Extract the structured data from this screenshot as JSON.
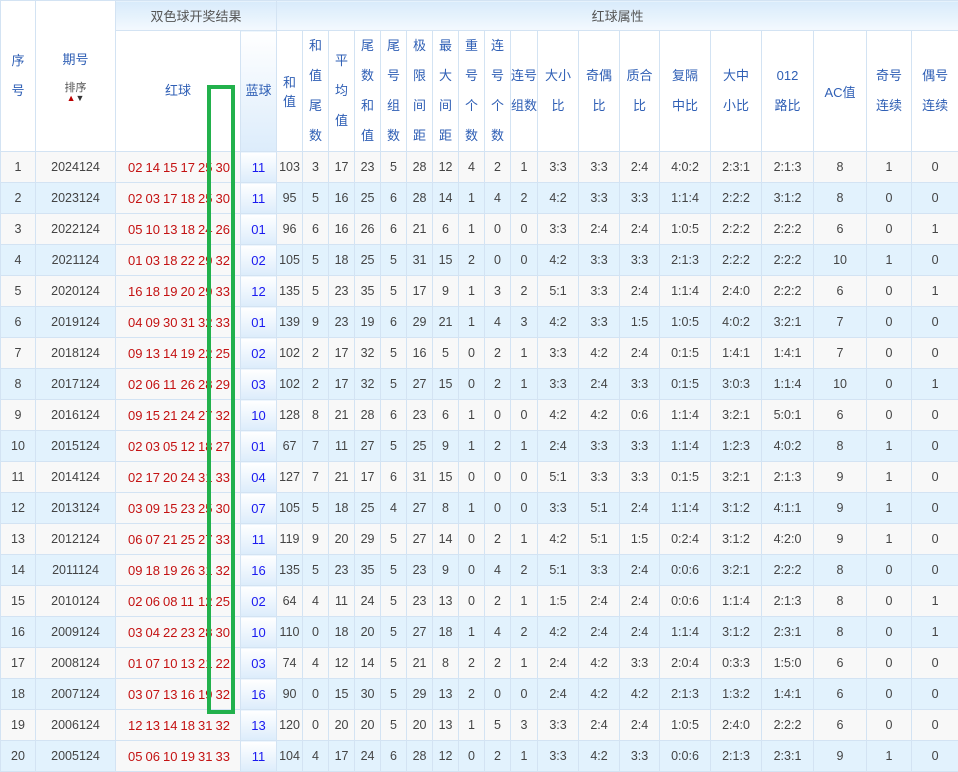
{
  "header": {
    "seq": "序\n号",
    "issue": "期号",
    "sort_label": "排序",
    "sort_up_icon": "arrow-up",
    "sort_down_icon": "arrow-down",
    "draw_group": "双色球开奖结果",
    "attr_group": "红球属性",
    "red": "红球",
    "blue": "蓝球",
    "attrs": [
      "和值",
      "和值\n尾数",
      "平均\n值",
      "尾数\n和值",
      "尾号\n组数",
      "极限\n间距",
      "最大\n间距",
      "重号\n个数",
      "连号\n个数",
      "连号\n组数",
      "大小\n比",
      "奇偶\n比",
      "质合\n比",
      "复隔\n中比",
      "大中\n小比",
      "012\n路比",
      "AC值",
      "奇号\n连续",
      "偶号\n连续"
    ]
  },
  "colors": {
    "red_ball": "#c41212",
    "blue_ball": "#1a1af0",
    "header_text": "#2f5fb5",
    "highlight_box": "#22b14c",
    "row_alt": "#e2f2fd"
  },
  "rows": [
    {
      "seq": "1",
      "issue": "2024124",
      "red": [
        "02",
        "14",
        "15",
        "17",
        "25",
        "30"
      ],
      "blue": "11",
      "attrs": [
        "103",
        "3",
        "17",
        "23",
        "5",
        "28",
        "12",
        "4",
        "2",
        "1",
        "3:3",
        "3:3",
        "2:4",
        "4:0:2",
        "2:3:1",
        "2:1:3",
        "8",
        "1",
        "0"
      ]
    },
    {
      "seq": "2",
      "issue": "2023124",
      "red": [
        "02",
        "03",
        "17",
        "18",
        "25",
        "30"
      ],
      "blue": "11",
      "attrs": [
        "95",
        "5",
        "16",
        "25",
        "6",
        "28",
        "14",
        "1",
        "4",
        "2",
        "4:2",
        "3:3",
        "3:3",
        "1:1:4",
        "2:2:2",
        "3:1:2",
        "8",
        "0",
        "0"
      ]
    },
    {
      "seq": "3",
      "issue": "2022124",
      "red": [
        "05",
        "10",
        "13",
        "18",
        "24",
        "26"
      ],
      "blue": "01",
      "attrs": [
        "96",
        "6",
        "16",
        "26",
        "6",
        "21",
        "6",
        "1",
        "0",
        "0",
        "3:3",
        "2:4",
        "2:4",
        "1:0:5",
        "2:2:2",
        "2:2:2",
        "6",
        "0",
        "1"
      ]
    },
    {
      "seq": "4",
      "issue": "2021124",
      "red": [
        "01",
        "03",
        "18",
        "22",
        "29",
        "32"
      ],
      "blue": "02",
      "attrs": [
        "105",
        "5",
        "18",
        "25",
        "5",
        "31",
        "15",
        "2",
        "0",
        "0",
        "4:2",
        "3:3",
        "3:3",
        "2:1:3",
        "2:2:2",
        "2:2:2",
        "10",
        "1",
        "0"
      ]
    },
    {
      "seq": "5",
      "issue": "2020124",
      "red": [
        "16",
        "18",
        "19",
        "20",
        "29",
        "33"
      ],
      "blue": "12",
      "attrs": [
        "135",
        "5",
        "23",
        "35",
        "5",
        "17",
        "9",
        "1",
        "3",
        "2",
        "5:1",
        "3:3",
        "2:4",
        "1:1:4",
        "2:4:0",
        "2:2:2",
        "6",
        "0",
        "1"
      ]
    },
    {
      "seq": "6",
      "issue": "2019124",
      "red": [
        "04",
        "09",
        "30",
        "31",
        "32",
        "33"
      ],
      "blue": "01",
      "attrs": [
        "139",
        "9",
        "23",
        "19",
        "6",
        "29",
        "21",
        "1",
        "4",
        "3",
        "4:2",
        "3:3",
        "1:5",
        "1:0:5",
        "4:0:2",
        "3:2:1",
        "7",
        "0",
        "0"
      ]
    },
    {
      "seq": "7",
      "issue": "2018124",
      "red": [
        "09",
        "13",
        "14",
        "19",
        "22",
        "25"
      ],
      "blue": "02",
      "attrs": [
        "102",
        "2",
        "17",
        "32",
        "5",
        "16",
        "5",
        "0",
        "2",
        "1",
        "3:3",
        "4:2",
        "2:4",
        "0:1:5",
        "1:4:1",
        "1:4:1",
        "7",
        "0",
        "0"
      ]
    },
    {
      "seq": "8",
      "issue": "2017124",
      "red": [
        "02",
        "06",
        "11",
        "26",
        "28",
        "29"
      ],
      "blue": "03",
      "attrs": [
        "102",
        "2",
        "17",
        "32",
        "5",
        "27",
        "15",
        "0",
        "2",
        "1",
        "3:3",
        "2:4",
        "3:3",
        "0:1:5",
        "3:0:3",
        "1:1:4",
        "10",
        "0",
        "1"
      ]
    },
    {
      "seq": "9",
      "issue": "2016124",
      "red": [
        "09",
        "15",
        "21",
        "24",
        "27",
        "32"
      ],
      "blue": "10",
      "attrs": [
        "128",
        "8",
        "21",
        "28",
        "6",
        "23",
        "6",
        "1",
        "0",
        "0",
        "4:2",
        "4:2",
        "0:6",
        "1:1:4",
        "3:2:1",
        "5:0:1",
        "6",
        "0",
        "0"
      ]
    },
    {
      "seq": "10",
      "issue": "2015124",
      "red": [
        "02",
        "03",
        "05",
        "12",
        "18",
        "27"
      ],
      "blue": "01",
      "attrs": [
        "67",
        "7",
        "11",
        "27",
        "5",
        "25",
        "9",
        "1",
        "2",
        "1",
        "2:4",
        "3:3",
        "3:3",
        "1:1:4",
        "1:2:3",
        "4:0:2",
        "8",
        "1",
        "0"
      ]
    },
    {
      "seq": "11",
      "issue": "2014124",
      "red": [
        "02",
        "17",
        "20",
        "24",
        "31",
        "33"
      ],
      "blue": "04",
      "attrs": [
        "127",
        "7",
        "21",
        "17",
        "6",
        "31",
        "15",
        "0",
        "0",
        "0",
        "5:1",
        "3:3",
        "3:3",
        "0:1:5",
        "3:2:1",
        "2:1:3",
        "9",
        "1",
        "0"
      ]
    },
    {
      "seq": "12",
      "issue": "2013124",
      "red": [
        "03",
        "09",
        "15",
        "23",
        "25",
        "30"
      ],
      "blue": "07",
      "attrs": [
        "105",
        "5",
        "18",
        "25",
        "4",
        "27",
        "8",
        "1",
        "0",
        "0",
        "3:3",
        "5:1",
        "2:4",
        "1:1:4",
        "3:1:2",
        "4:1:1",
        "9",
        "1",
        "0"
      ]
    },
    {
      "seq": "13",
      "issue": "2012124",
      "red": [
        "06",
        "07",
        "21",
        "25",
        "27",
        "33"
      ],
      "blue": "11",
      "attrs": [
        "119",
        "9",
        "20",
        "29",
        "5",
        "27",
        "14",
        "0",
        "2",
        "1",
        "4:2",
        "5:1",
        "1:5",
        "0:2:4",
        "3:1:2",
        "4:2:0",
        "9",
        "1",
        "0"
      ]
    },
    {
      "seq": "14",
      "issue": "2011124",
      "red": [
        "09",
        "18",
        "19",
        "26",
        "31",
        "32"
      ],
      "blue": "16",
      "attrs": [
        "135",
        "5",
        "23",
        "35",
        "5",
        "23",
        "9",
        "0",
        "4",
        "2",
        "5:1",
        "3:3",
        "2:4",
        "0:0:6",
        "3:2:1",
        "2:2:2",
        "8",
        "0",
        "0"
      ]
    },
    {
      "seq": "15",
      "issue": "2010124",
      "red": [
        "02",
        "06",
        "08",
        "11",
        "12",
        "25"
      ],
      "blue": "02",
      "attrs": [
        "64",
        "4",
        "11",
        "24",
        "5",
        "23",
        "13",
        "0",
        "2",
        "1",
        "1:5",
        "2:4",
        "2:4",
        "0:0:6",
        "1:1:4",
        "2:1:3",
        "8",
        "0",
        "1"
      ]
    },
    {
      "seq": "16",
      "issue": "2009124",
      "red": [
        "03",
        "04",
        "22",
        "23",
        "28",
        "30"
      ],
      "blue": "10",
      "attrs": [
        "110",
        "0",
        "18",
        "20",
        "5",
        "27",
        "18",
        "1",
        "4",
        "2",
        "4:2",
        "2:4",
        "2:4",
        "1:1:4",
        "3:1:2",
        "2:3:1",
        "8",
        "0",
        "1"
      ]
    },
    {
      "seq": "17",
      "issue": "2008124",
      "red": [
        "01",
        "07",
        "10",
        "13",
        "21",
        "22"
      ],
      "blue": "03",
      "attrs": [
        "74",
        "4",
        "12",
        "14",
        "5",
        "21",
        "8",
        "2",
        "2",
        "1",
        "2:4",
        "4:2",
        "3:3",
        "2:0:4",
        "0:3:3",
        "1:5:0",
        "6",
        "0",
        "0"
      ]
    },
    {
      "seq": "18",
      "issue": "2007124",
      "red": [
        "03",
        "07",
        "13",
        "16",
        "19",
        "32"
      ],
      "blue": "16",
      "attrs": [
        "90",
        "0",
        "15",
        "30",
        "5",
        "29",
        "13",
        "2",
        "0",
        "0",
        "2:4",
        "4:2",
        "4:2",
        "2:1:3",
        "1:3:2",
        "1:4:1",
        "6",
        "0",
        "0"
      ]
    },
    {
      "seq": "19",
      "issue": "2006124",
      "red": [
        "12",
        "13",
        "14",
        "18",
        "31",
        "32"
      ],
      "blue": "13",
      "attrs": [
        "120",
        "0",
        "20",
        "20",
        "5",
        "20",
        "13",
        "1",
        "5",
        "3",
        "3:3",
        "2:4",
        "2:4",
        "1:0:5",
        "2:4:0",
        "2:2:2",
        "6",
        "0",
        "0"
      ]
    },
    {
      "seq": "20",
      "issue": "2005124",
      "red": [
        "05",
        "06",
        "10",
        "19",
        "31",
        "33"
      ],
      "blue": "11",
      "attrs": [
        "104",
        "4",
        "17",
        "24",
        "6",
        "28",
        "12",
        "0",
        "2",
        "1",
        "3:3",
        "4:2",
        "3:3",
        "0:0:6",
        "2:1:3",
        "2:3:1",
        "9",
        "1",
        "0"
      ]
    }
  ]
}
